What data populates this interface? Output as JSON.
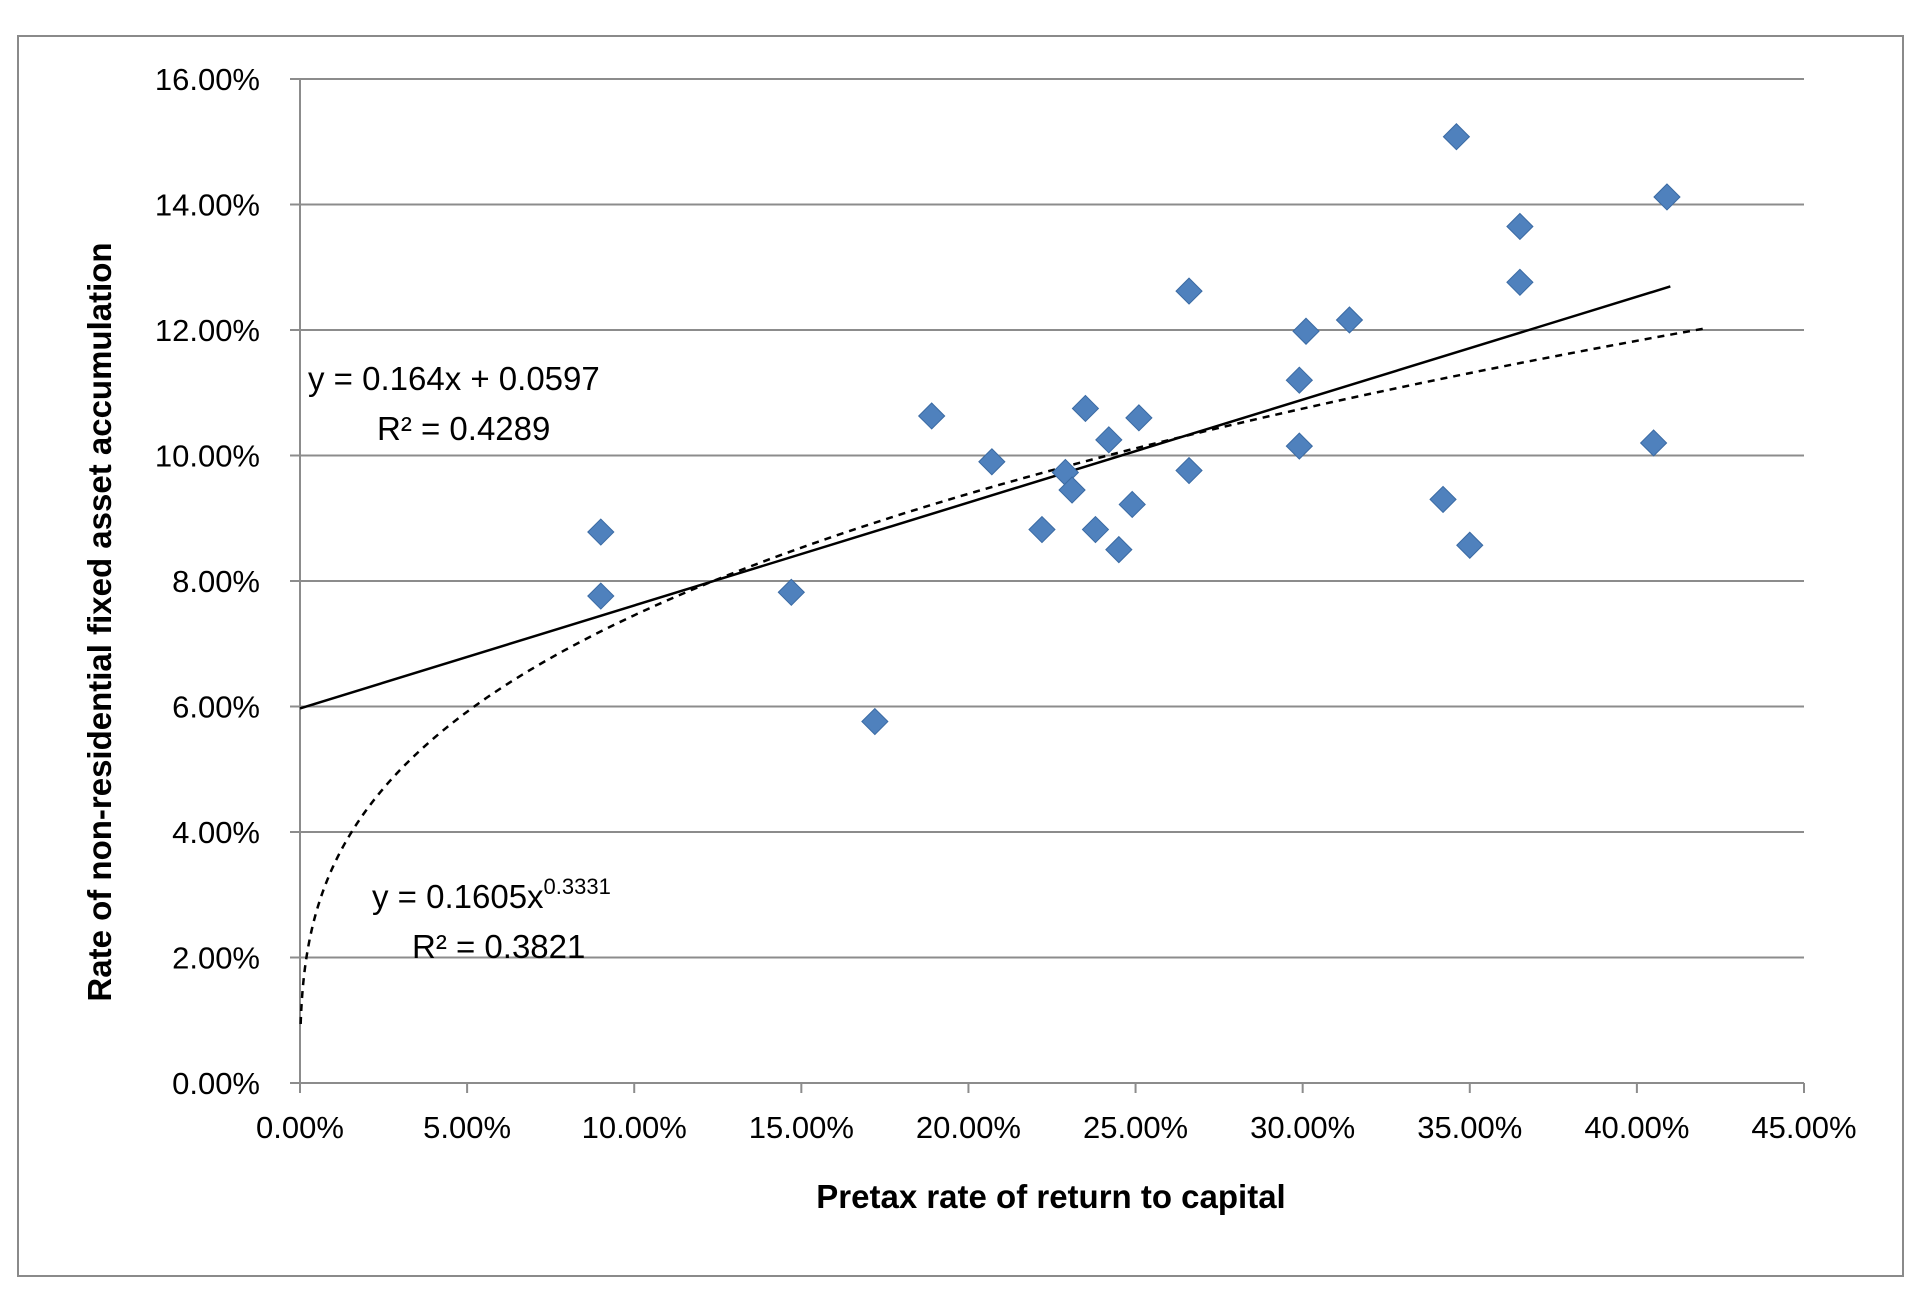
{
  "chart_data": {
    "type": "scatter",
    "title": "",
    "xlabel": "Pretax rate of return to capital",
    "ylabel": "Rate of non-residential fixed asset accumulation",
    "xlim": [
      0,
      0.45
    ],
    "ylim": [
      0,
      0.16
    ],
    "x_ticks": [
      0,
      0.05,
      0.1,
      0.15,
      0.2,
      0.25,
      0.3,
      0.35,
      0.4,
      0.45
    ],
    "x_tick_labels": [
      "0.00%",
      "5.00%",
      "10.00%",
      "15.00%",
      "20.00%",
      "25.00%",
      "30.00%",
      "35.00%",
      "40.00%",
      "45.00%"
    ],
    "y_ticks": [
      0,
      0.02,
      0.04,
      0.06,
      0.08,
      0.1,
      0.12,
      0.14,
      0.16
    ],
    "y_tick_labels": [
      "0.00%",
      "2.00%",
      "4.00%",
      "6.00%",
      "8.00%",
      "10.00%",
      "12.00%",
      "14.00%",
      "16.00%"
    ],
    "grid": "horizontal",
    "marker_color": "#4f81bd",
    "points": [
      {
        "x": 0.09,
        "y": 0.0878
      },
      {
        "x": 0.09,
        "y": 0.0776
      },
      {
        "x": 0.147,
        "y": 0.0782
      },
      {
        "x": 0.172,
        "y": 0.0576
      },
      {
        "x": 0.189,
        "y": 0.1063
      },
      {
        "x": 0.207,
        "y": 0.099
      },
      {
        "x": 0.222,
        "y": 0.0882
      },
      {
        "x": 0.229,
        "y": 0.0973
      },
      {
        "x": 0.231,
        "y": 0.0945
      },
      {
        "x": 0.235,
        "y": 0.1075
      },
      {
        "x": 0.238,
        "y": 0.0882
      },
      {
        "x": 0.242,
        "y": 0.1025
      },
      {
        "x": 0.245,
        "y": 0.085
      },
      {
        "x": 0.249,
        "y": 0.0922
      },
      {
        "x": 0.251,
        "y": 0.106
      },
      {
        "x": 0.266,
        "y": 0.1262
      },
      {
        "x": 0.266,
        "y": 0.0976
      },
      {
        "x": 0.299,
        "y": 0.112
      },
      {
        "x": 0.299,
        "y": 0.1015
      },
      {
        "x": 0.301,
        "y": 0.1198
      },
      {
        "x": 0.314,
        "y": 0.1216
      },
      {
        "x": 0.342,
        "y": 0.093
      },
      {
        "x": 0.346,
        "y": 0.1508
      },
      {
        "x": 0.35,
        "y": 0.0857
      },
      {
        "x": 0.365,
        "y": 0.1365
      },
      {
        "x": 0.365,
        "y": 0.1276
      },
      {
        "x": 0.405,
        "y": 0.102
      },
      {
        "x": 0.409,
        "y": 0.1412
      }
    ],
    "trendlines": [
      {
        "kind": "linear",
        "slope": 0.164,
        "intercept": 0.0597,
        "x_range": [
          0,
          0.41
        ],
        "style": "solid"
      },
      {
        "kind": "power",
        "coef": 0.1605,
        "exponent": 0.3331,
        "x_range": [
          0.0002,
          0.42
        ],
        "style": "dashed"
      }
    ]
  },
  "annotations": {
    "linear_eq": "y = 0.164x + 0.0597",
    "linear_r2": "R² = 0.4289",
    "power_eq_base": "y = 0.1605x",
    "power_eq_exp": "0.3331",
    "power_r2": "R² = 0.3821"
  }
}
